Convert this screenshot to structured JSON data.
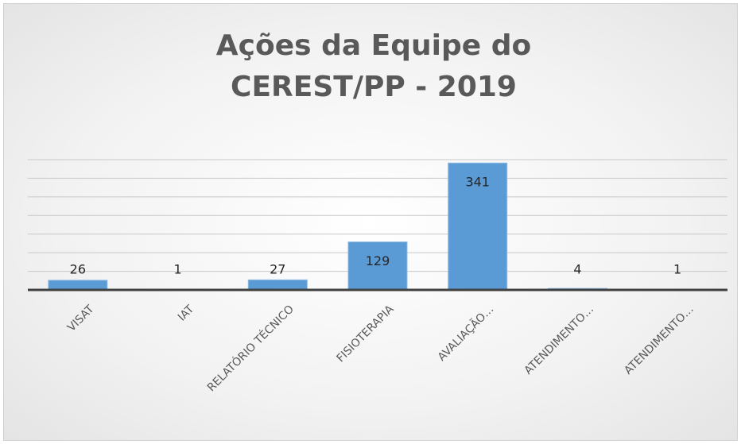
{
  "chart_data": {
    "type": "bar",
    "title": "Ações da Equipe do CEREST/PP - 2019",
    "categories": [
      "VISAT",
      "IAT",
      "RELATÓRIO TÉCNICO",
      "FISIOTERAPIA",
      "AVALIAÇÃO…",
      "ATENDIMENTO…",
      "ATENDIMENTO…"
    ],
    "values": [
      26,
      1,
      27,
      129,
      341,
      4,
      1
    ],
    "color": "#5b9bd5",
    "ylim": [
      0,
      350
    ],
    "yticks": [
      0,
      50,
      100,
      150,
      200,
      250,
      300,
      350
    ],
    "grid": true
  }
}
